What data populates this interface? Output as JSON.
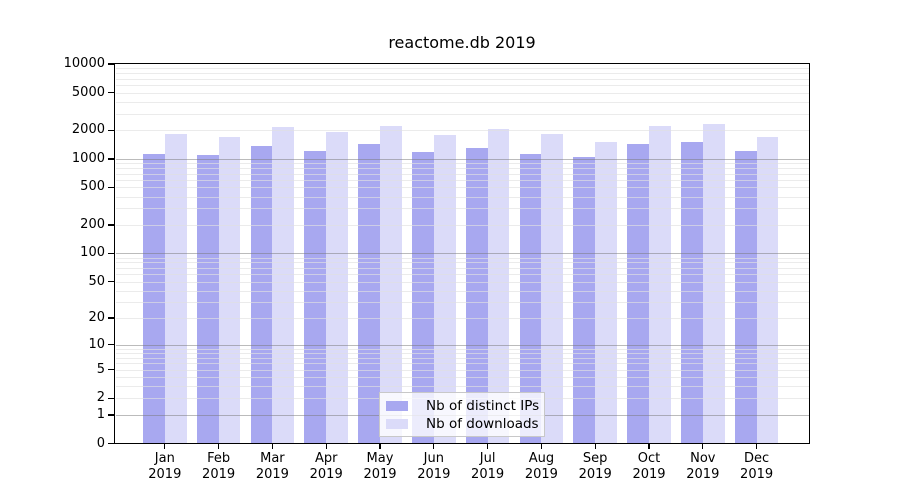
{
  "title": "reactome.db 2019",
  "chart_data": {
    "type": "bar",
    "title": "reactome.db 2019",
    "categories": [
      "Jan 2019",
      "Feb 2019",
      "Mar 2019",
      "Apr 2019",
      "May 2019",
      "Jun 2019",
      "Jul 2019",
      "Aug 2019",
      "Sep 2019",
      "Oct 2019",
      "Nov 2019",
      "Dec 2019"
    ],
    "series": [
      {
        "name": "Nb of distinct IPs",
        "color": "#a8a8f0",
        "values": [
          1118,
          1091,
          1358,
          1213,
          1426,
          1195,
          1315,
          1119,
          1047,
          1448,
          1521,
          1210
        ]
      },
      {
        "name": "Nb of downloads",
        "color": "#dbdbf9",
        "values": [
          1819,
          1714,
          2173,
          1940,
          2243,
          1791,
          2070,
          1849,
          1510,
          2213,
          2355,
          1690
        ]
      }
    ],
    "yscale": "log10(1+v)",
    "ylim": [
      0,
      10000
    ],
    "yticks": [
      0,
      1,
      2,
      5,
      10,
      20,
      50,
      100,
      200,
      500,
      1000,
      2000,
      5000,
      10000
    ],
    "grid": "horizontal, minor at 2-9 per decade, major at powers of 10",
    "legend_position": "inside bottom-center",
    "xlabel": "",
    "ylabel": ""
  },
  "colors": {
    "background": "#ffffff",
    "axis": "#000000",
    "grid_minor": "#e5e5e5",
    "grid_major": "#9a9a9a",
    "legend_border": "#c8c8c8"
  }
}
